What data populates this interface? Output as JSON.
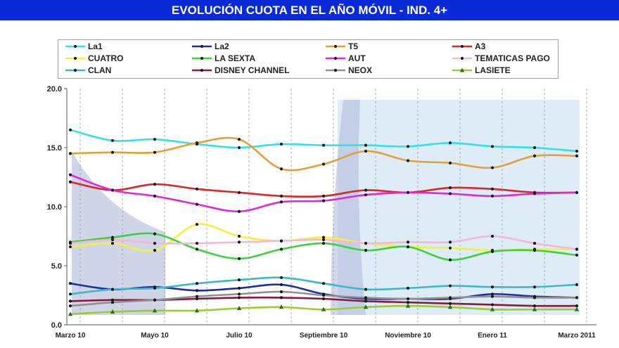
{
  "header": {
    "title": "EVOLUCIÓN CUOTA EN EL AÑO MÓVIL - IND. 4+"
  },
  "chart_data": {
    "type": "line",
    "title": "EVOLUCIÓN CUOTA EN EL AÑO MÓVIL - IND. 4+",
    "xlabel": "",
    "ylabel": "",
    "ylim": [
      0,
      20
    ],
    "yticks": [
      "0.0",
      "5.0",
      "10.0",
      "15.0",
      "20.0"
    ],
    "grid": "vertical dashed",
    "legend_position": "top",
    "x_tick_labels": [
      "Marzo 10",
      "Mayo 10",
      "Julio 10",
      "Septiembre 10",
      "Noviembre 10",
      "Enero 11",
      "Marzo 2011"
    ],
    "categories": [
      "Mar 10",
      "Abr 10",
      "May 10",
      "Jun 10",
      "Jul 10",
      "Ago 10",
      "Sep 10",
      "Oct 10",
      "Nov 10",
      "Dic 10",
      "Ene 11",
      "Feb 11",
      "Mar 11"
    ],
    "series": [
      {
        "name": "La1",
        "color": "#33e0e8",
        "marker": "dot",
        "values": [
          16.5,
          15.6,
          15.7,
          15.3,
          15.0,
          15.3,
          15.2,
          15.2,
          15.1,
          15.4,
          15.1,
          15.0,
          14.7
        ]
      },
      {
        "name": "La2",
        "color": "#1f2fa0",
        "marker": "dot",
        "values": [
          3.5,
          3.0,
          3.2,
          2.9,
          3.1,
          3.4,
          2.6,
          2.2,
          2.2,
          2.2,
          2.6,
          2.4,
          2.3
        ]
      },
      {
        "name": "T5",
        "color": "#e3a03a",
        "marker": "dot",
        "values": [
          14.5,
          14.6,
          14.6,
          15.4,
          15.7,
          13.2,
          13.6,
          14.7,
          13.9,
          13.7,
          13.3,
          14.3,
          14.3
        ]
      },
      {
        "name": "A3",
        "color": "#d42a2a",
        "marker": "dot",
        "values": [
          12.1,
          11.4,
          11.9,
          11.5,
          11.2,
          10.9,
          10.9,
          11.4,
          11.2,
          11.6,
          11.5,
          11.2,
          11.2
        ]
      },
      {
        "name": "CUATRO",
        "color": "#f2f23a",
        "marker": "dot",
        "values": [
          6.6,
          6.9,
          6.3,
          8.5,
          7.5,
          7.1,
          7.4,
          6.9,
          6.6,
          6.5,
          6.3,
          6.4,
          6.4
        ]
      },
      {
        "name": "LA SEXTA",
        "color": "#3ed03e",
        "marker": "dot",
        "values": [
          7.0,
          7.4,
          7.7,
          6.4,
          5.6,
          6.4,
          6.9,
          6.3,
          6.6,
          5.5,
          6.2,
          6.3,
          5.9
        ]
      },
      {
        "name": "AUT",
        "color": "#dd28dd",
        "marker": "dot",
        "values": [
          12.7,
          11.4,
          10.9,
          10.2,
          9.6,
          10.4,
          10.5,
          11.0,
          11.2,
          11.1,
          10.9,
          11.1,
          11.2
        ]
      },
      {
        "name": "TEMATICAS PAGO",
        "color": "#f2b8d8",
        "marker": "dot",
        "values": [
          6.9,
          7.2,
          6.9,
          6.9,
          7.0,
          7.1,
          7.2,
          6.9,
          7.0,
          7.0,
          7.5,
          6.9,
          6.4
        ]
      },
      {
        "name": "CLAN",
        "color": "#3db8c8",
        "marker": "dot",
        "values": [
          2.6,
          3.0,
          3.1,
          3.5,
          3.8,
          4.0,
          3.5,
          3.0,
          3.1,
          3.3,
          3.2,
          3.2,
          3.4
        ]
      },
      {
        "name": "DISNEY CHANNEL",
        "color": "#8a1a3a",
        "marker": "dot",
        "values": [
          2.0,
          2.1,
          2.1,
          2.2,
          2.3,
          2.3,
          2.2,
          2.0,
          1.9,
          1.8,
          1.7,
          1.6,
          1.6
        ]
      },
      {
        "name": "NEOX",
        "color": "#909090",
        "marker": "dot",
        "values": [
          1.6,
          1.9,
          2.1,
          2.4,
          2.6,
          2.8,
          2.5,
          2.3,
          2.2,
          2.3,
          2.4,
          2.3,
          2.3
        ]
      },
      {
        "name": "LASIETE",
        "color": "#9acd32",
        "marker": "triangle",
        "values": [
          0.9,
          1.1,
          1.2,
          1.2,
          1.4,
          1.5,
          1.3,
          1.5,
          1.6,
          1.5,
          1.3,
          1.3,
          1.3
        ]
      }
    ]
  },
  "colors": {
    "title_bar": "#0a2ad8",
    "title_text": "#ffffff",
    "watermark_a": "#a9b2d6",
    "watermark_b": "#cfe4f2"
  }
}
